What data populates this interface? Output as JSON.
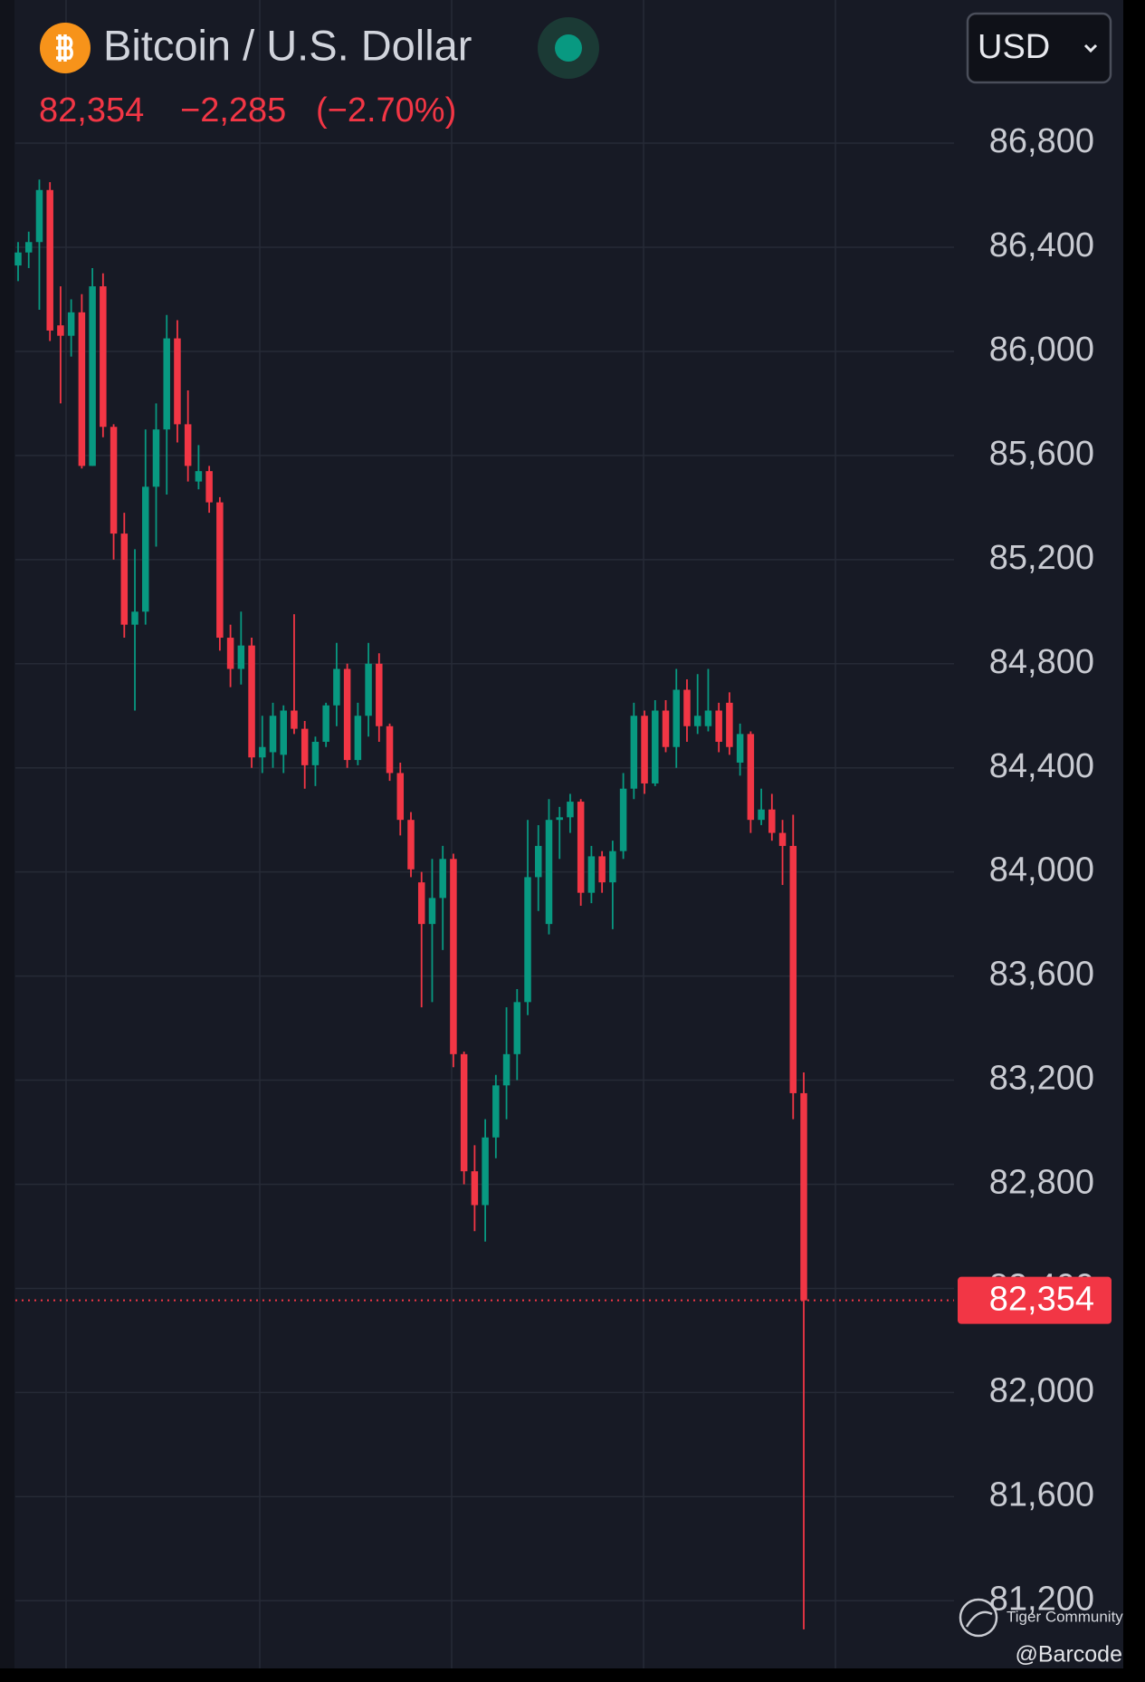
{
  "chart_data": {
    "type": "candlestick",
    "title": "Bitcoin / U.S. Dollar",
    "currency": "USD",
    "current_price": {
      "value": 82354,
      "label": "82,354"
    },
    "change": {
      "value": -2285,
      "label": "−2,285"
    },
    "change_percent": {
      "value": -2.7,
      "label": "(−2.70%)"
    },
    "up_color": "#089981",
    "down_color": "#f23645",
    "grid": true,
    "ylim": [
      80940,
      87350
    ],
    "yticks": [
      {
        "value": 81200,
        "label": "81,200"
      },
      {
        "value": 81600,
        "label": "81,600"
      },
      {
        "value": 82000,
        "label": "82,000"
      },
      {
        "value": 82400,
        "label": "82,400"
      },
      {
        "value": 82800,
        "label": "82,800"
      },
      {
        "value": 83200,
        "label": "83,200"
      },
      {
        "value": 83600,
        "label": "83,600"
      },
      {
        "value": 84000,
        "label": "84,000"
      },
      {
        "value": 84400,
        "label": "84,400"
      },
      {
        "value": 84800,
        "label": "84,800"
      },
      {
        "value": 85200,
        "label": "85,200"
      },
      {
        "value": 85600,
        "label": "85,600"
      },
      {
        "value": 86000,
        "label": "86,000"
      },
      {
        "value": 86400,
        "label": "86,400"
      },
      {
        "value": 86800,
        "label": "86,800"
      }
    ],
    "open": [
      86330,
      86380,
      86420,
      86620,
      86100,
      86060,
      86150,
      85560,
      86250,
      85710,
      85300,
      84950,
      85000,
      85480,
      85700,
      86050,
      85720,
      85500,
      85540,
      85420,
      84900,
      84780,
      84870,
      84440,
      84460,
      84450,
      84620,
      84550,
      84410,
      84500,
      84640,
      84780,
      84430,
      84600,
      84800,
      84560,
      84380,
      84200,
      83960,
      83800,
      83900,
      84050,
      83300,
      82850,
      82720,
      82980,
      83180,
      83300,
      83500,
      83980,
      83800,
      84200,
      84210,
      84270,
      83920,
      84060,
      83960,
      84080,
      84320,
      84600,
      84340,
      84620,
      84480,
      84700,
      84560,
      84560,
      84620,
      84650,
      84420,
      84530,
      84200,
      84240,
      84150,
      84100,
      83150
    ],
    "high": [
      86420,
      86460,
      86660,
      86650,
      86250,
      86200,
      86220,
      86320,
      86300,
      85720,
      85380,
      85240,
      85700,
      85800,
      86140,
      86120,
      85850,
      85640,
      85560,
      85440,
      84950,
      85000,
      84900,
      84600,
      84650,
      84640,
      84990,
      84580,
      84520,
      84650,
      84880,
      84800,
      84650,
      84880,
      84840,
      84570,
      84420,
      84230,
      84000,
      84050,
      84100,
      84070,
      83310,
      82950,
      83050,
      83220,
      83480,
      83550,
      84200,
      84180,
      84280,
      84250,
      84300,
      84280,
      84100,
      84080,
      84120,
      84380,
      84650,
      84620,
      84660,
      84660,
      84780,
      84740,
      84760,
      84780,
      84650,
      84690,
      84570,
      84540,
      84320,
      84300,
      84200,
      84220,
      83230
    ],
    "low": [
      86270,
      86320,
      86160,
      86040,
      85800,
      85980,
      85550,
      85560,
      85670,
      85200,
      84900,
      84620,
      84950,
      85250,
      85450,
      85650,
      85500,
      85470,
      85380,
      84850,
      84710,
      84720,
      84400,
      84380,
      84400,
      84380,
      84530,
      84320,
      84330,
      84480,
      84560,
      84400,
      84410,
      84520,
      84500,
      84350,
      84140,
      83980,
      83480,
      83500,
      83700,
      83250,
      82800,
      82620,
      82580,
      82900,
      83050,
      83200,
      83450,
      83850,
      83760,
      84050,
      84150,
      83870,
      83880,
      83920,
      83780,
      84050,
      84280,
      84300,
      84330,
      84460,
      84400,
      84500,
      84530,
      84540,
      84460,
      84450,
      84370,
      84150,
      84180,
      84120,
      83950,
      83050,
      81090
    ],
    "close": [
      86380,
      86420,
      86620,
      86080,
      86060,
      86150,
      85560,
      86250,
      85710,
      85300,
      84950,
      85000,
      85480,
      85700,
      86050,
      85720,
      85560,
      85540,
      85420,
      84900,
      84780,
      84870,
      84440,
      84480,
      84600,
      84620,
      84550,
      84410,
      84500,
      84640,
      84780,
      84430,
      84600,
      84800,
      84560,
      84380,
      84200,
      84010,
      83800,
      83900,
      84050,
      83300,
      82850,
      82720,
      82980,
      83180,
      83300,
      83500,
      83980,
      84100,
      84200,
      84210,
      84270,
      83920,
      84060,
      83960,
      84080,
      84320,
      84600,
      84340,
      84620,
      84480,
      84700,
      84560,
      84600,
      84620,
      84500,
      84480,
      84530,
      84200,
      84240,
      84150,
      84100,
      83150,
      82354
    ]
  },
  "watermark": {
    "brand": "Tiger Community",
    "author": "@Barcode"
  }
}
